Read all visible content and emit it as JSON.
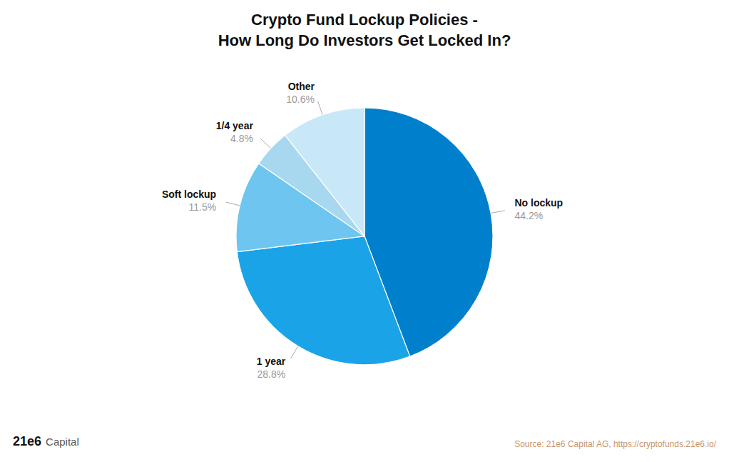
{
  "chart_data": {
    "type": "pie",
    "title": "Crypto Fund Lockup Policies -\nHow Long Do Investors Get Locked In?",
    "categories": [
      "No lockup",
      "1 year",
      "Soft lockup",
      "1/4 year",
      "Other"
    ],
    "values": [
      44.2,
      28.8,
      11.5,
      4.8,
      10.6
    ],
    "value_labels": [
      "44.2%",
      "28.8%",
      "11.5%",
      "4.8%",
      "10.6%"
    ],
    "colors": [
      "#0080CC",
      "#1BA3E8",
      "#6EC6F0",
      "#A8D8F0",
      "#C8E8F8"
    ],
    "data_labels": true,
    "annotations": [
      "Source: 21e6 Capital AG, https://cryptofunds.21e6.io/",
      "21e6",
      "Capital"
    ]
  }
}
